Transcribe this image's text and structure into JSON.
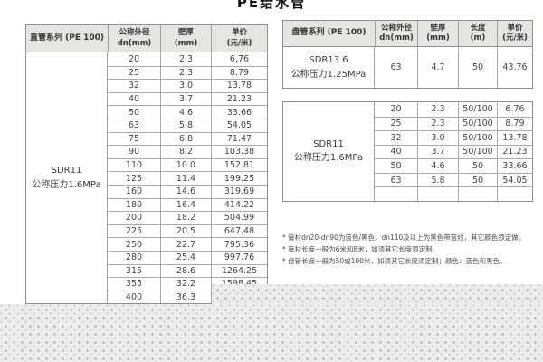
{
  "page": {
    "title": "PE给水管"
  },
  "colors": {
    "header_bg": "#e7e5e2",
    "border_outer": "#8f8f8f",
    "border_inner": "#ababab",
    "text": "#3f3f3f",
    "pattern_bg": "#ececec",
    "pattern_dot": "#969696"
  },
  "straight_pipe_table": {
    "series_label": "直管系列 (PE 100)",
    "headers": {
      "dn": "公称外径\ndn(mm)",
      "wall": "壁厚\n(mm)",
      "price": "单价\n(元/米)"
    },
    "group_label": "SDR11\n公称压力1.6MPa",
    "rows": [
      {
        "dn": "20",
        "wall": "2.3",
        "price": "6.76"
      },
      {
        "dn": "25",
        "wall": "2.3",
        "price": "8.79"
      },
      {
        "dn": "32",
        "wall": "3.0",
        "price": "13.78"
      },
      {
        "dn": "40",
        "wall": "3.7",
        "price": "21.23"
      },
      {
        "dn": "50",
        "wall": "4.6",
        "price": "33.66"
      },
      {
        "dn": "63",
        "wall": "5.8",
        "price": "54.05"
      },
      {
        "dn": "75",
        "wall": "6.8",
        "price": "71.47"
      },
      {
        "dn": "90",
        "wall": "8.2",
        "price": "103.38"
      },
      {
        "dn": "110",
        "wall": "10.0",
        "price": "152.81"
      },
      {
        "dn": "125",
        "wall": "11.4",
        "price": "199.25"
      },
      {
        "dn": "160",
        "wall": "14.6",
        "price": "319.69"
      },
      {
        "dn": "180",
        "wall": "16.4",
        "price": "414.22"
      },
      {
        "dn": "200",
        "wall": "18.2",
        "price": "504.99"
      },
      {
        "dn": "225",
        "wall": "20.5",
        "price": "647.48"
      },
      {
        "dn": "250",
        "wall": "22.7",
        "price": "795.36"
      },
      {
        "dn": "280",
        "wall": "25.4",
        "price": "997.76"
      },
      {
        "dn": "315",
        "wall": "28.6",
        "price": "1264.25"
      },
      {
        "dn": "355",
        "wall": "32.2",
        "price": "1598.45"
      },
      {
        "dn": "400",
        "wall": "36.3",
        "price": ""
      }
    ]
  },
  "coil_pipe_table": {
    "series_label": "盘管系列 (PE 100)",
    "headers": {
      "dn": "公称外径\ndn(mm)",
      "wall": "壁厚\n(mm)",
      "length": "长度\n(m)",
      "price": "单价\n(元/米)"
    },
    "sections": [
      {
        "group_label": "SDR13.6\n公称压力1.25MPa",
        "rows": [
          {
            "dn": "63",
            "wall": "4.7",
            "length": "50",
            "price": "43.76"
          }
        ]
      },
      {
        "group_label": "SDR11\n公称压力1.6MPa",
        "rows": [
          {
            "dn": "20",
            "wall": "2.3",
            "length": "50/100",
            "price": "6.76"
          },
          {
            "dn": "25",
            "wall": "2.3",
            "length": "50/100",
            "price": "8.79"
          },
          {
            "dn": "32",
            "wall": "3.0",
            "length": "50/100",
            "price": "13.78"
          },
          {
            "dn": "40",
            "wall": "3.7",
            "length": "50/100",
            "price": "21.23"
          },
          {
            "dn": "50",
            "wall": "4.6",
            "length": "50",
            "price": "33.66"
          },
          {
            "dn": "63",
            "wall": "5.8",
            "length": "50",
            "price": "54.05"
          },
          {
            "dn": "",
            "wall": "",
            "length": "",
            "price": ""
          }
        ]
      }
    ]
  },
  "footnotes": [
    "* 管材dn20-dn90为蓝色/黑色，dn110及以上为黑色带蓝线，其它颜色须定做。",
    "* 管材长度一般为6米和8米，如须其它长度须定制。",
    "* 盘管长度一般为50或100米，如须其它长度须定制；颜色：蓝色和黑色。"
  ]
}
